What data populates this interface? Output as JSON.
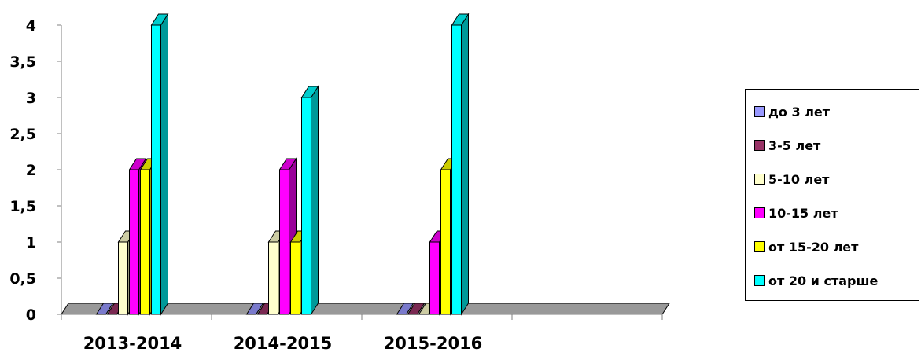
{
  "chart_data": {
    "type": "bar",
    "categories": [
      "2013-2014",
      "2014-2015",
      "2015-2016"
    ],
    "series": [
      {
        "name": "до 3 лет",
        "color": "#9999ff",
        "values": [
          0,
          0,
          0
        ]
      },
      {
        "name": "3-5 лет",
        "color": "#993366",
        "values": [
          0,
          0,
          0
        ]
      },
      {
        "name": "5-10 лет",
        "color": "#ffffcc",
        "values": [
          1,
          1,
          0
        ]
      },
      {
        "name": "10-15 лет",
        "color": "#ff00ff",
        "values": [
          2,
          2,
          1
        ]
      },
      {
        "name": "от 15-20 лет",
        "color": "#ffff00",
        "values": [
          2,
          1,
          2
        ]
      },
      {
        "name": "от 20 и старше",
        "color": "#00ffff",
        "values": [
          4,
          3,
          4
        ]
      }
    ],
    "yticks": [
      "0",
      "0,5",
      "1",
      "1,5",
      "2",
      "2,5",
      "3",
      "3,5",
      "4"
    ],
    "ylim": [
      0,
      4
    ],
    "legend_position": "right",
    "grid": false,
    "style": "3d-columns",
    "floor_color": "#999999"
  }
}
